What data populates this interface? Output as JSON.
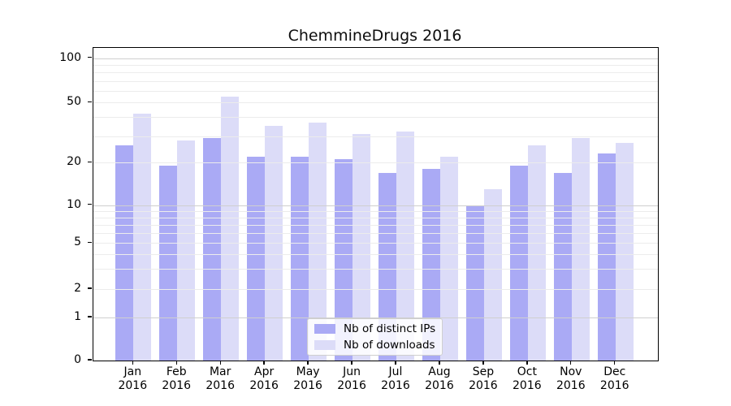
{
  "title": "ChemmineDrugs 2016",
  "y_axis": {
    "ticks": [
      0,
      1,
      2,
      5,
      10,
      20,
      50,
      100
    ]
  },
  "x_axis": {
    "months": [
      "Jan",
      "Feb",
      "Mar",
      "Apr",
      "May",
      "Jun",
      "Jul",
      "Aug",
      "Sep",
      "Oct",
      "Nov",
      "Dec"
    ],
    "year": "2016"
  },
  "legend": {
    "items": [
      {
        "label": "Nb of distinct IPs",
        "color": "#aaaaf5"
      },
      {
        "label": "Nb of downloads",
        "color": "#dcdcf8"
      }
    ]
  },
  "chart_data": {
    "type": "bar",
    "title": "ChemmineDrugs 2016",
    "categories": [
      "Jan 2016",
      "Feb 2016",
      "Mar 2016",
      "Apr 2016",
      "May 2016",
      "Jun 2016",
      "Jul 2016",
      "Aug 2016",
      "Sep 2016",
      "Oct 2016",
      "Nov 2016",
      "Dec 2016"
    ],
    "series": [
      {
        "name": "Nb of distinct IPs",
        "color": "#aaaaf5",
        "values": [
          26,
          19,
          29,
          22,
          22,
          21,
          17,
          18,
          10,
          19,
          17,
          23
        ]
      },
      {
        "name": "Nb of downloads",
        "color": "#dcdcf8",
        "values": [
          42,
          28,
          55,
          35,
          37,
          31,
          32,
          22,
          13,
          26,
          29,
          27
        ]
      }
    ],
    "yscale": "log",
    "y_ticks": [
      0,
      1,
      2,
      5,
      10,
      20,
      50,
      100
    ],
    "ylim": [
      0,
      120
    ],
    "grid": true,
    "legend_position": "inside-bottom-center"
  }
}
